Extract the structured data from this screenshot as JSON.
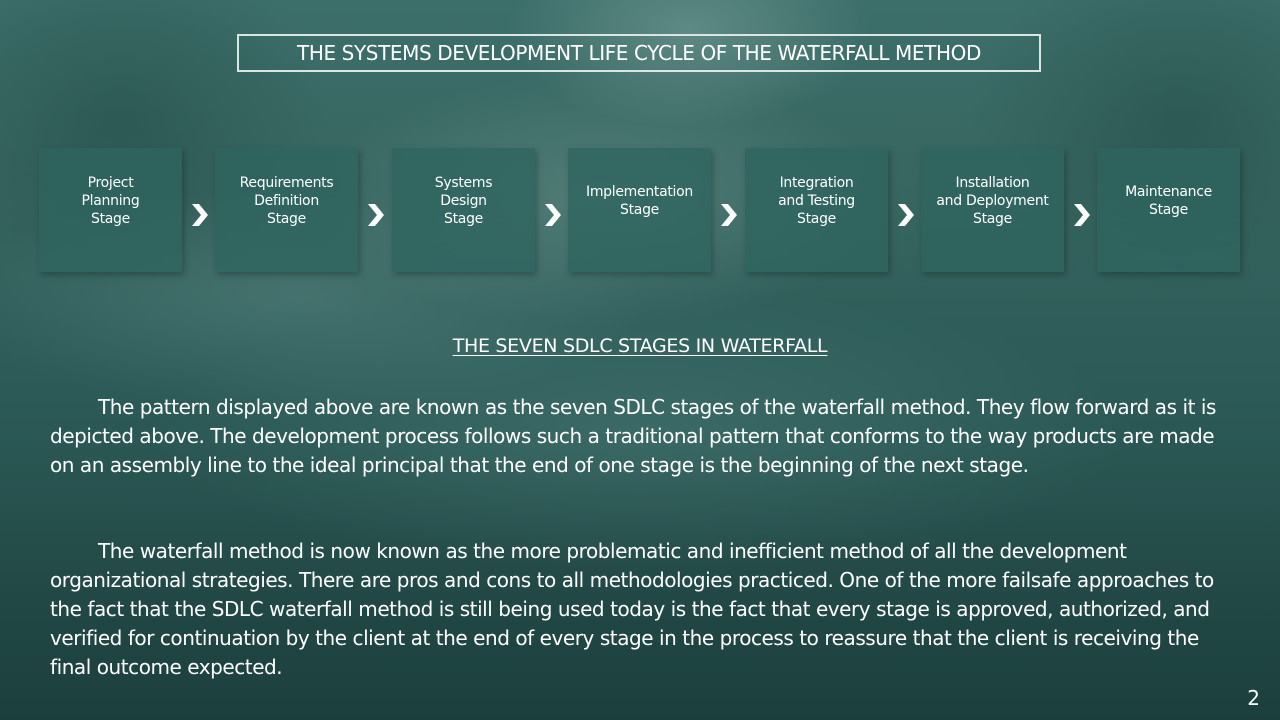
{
  "title": "THE SYSTEMS DEVELOPMENT LIFE CYCLE OF THE WATERFALL METHOD",
  "stages": [
    "Project\nPlanning\nStage",
    "Requirements\nDefinition\nStage",
    "Systems\nDesign\nStage",
    "Implementation\nStage",
    "Integration\nand Testing\nStage",
    "Installation\nand Deployment\nStage",
    "Maintenance\nStage"
  ],
  "subheading": "THE SEVEN SDLC STAGES IN WATERFALL",
  "paragraphs": [
    "The pattern displayed above are known as the seven SDLC stages of the waterfall method. They flow forward as it is depicted above. The development process follows such a traditional pattern that conforms to the way products are made on an assembly line to the ideal principal that the end of one stage is the beginning of the next stage.",
    "The waterfall method is now known as the more problematic and inefficient method of all the development organizational strategies. There are pros and cons to all methodologies practiced. One of the more failsafe approaches to the fact that the SDLC waterfall method is still being used today is the fact that every stage is approved, authorized, and verified for continuation by the client at the end of every stage in the process to reassure that the client is receiving the final outcome expected."
  ],
  "page_number": "2",
  "colors": {
    "text": "#ffffff",
    "stage_fill": "#2e645f",
    "title_border": "#d9e6e3",
    "background": "#2f5e5a"
  }
}
